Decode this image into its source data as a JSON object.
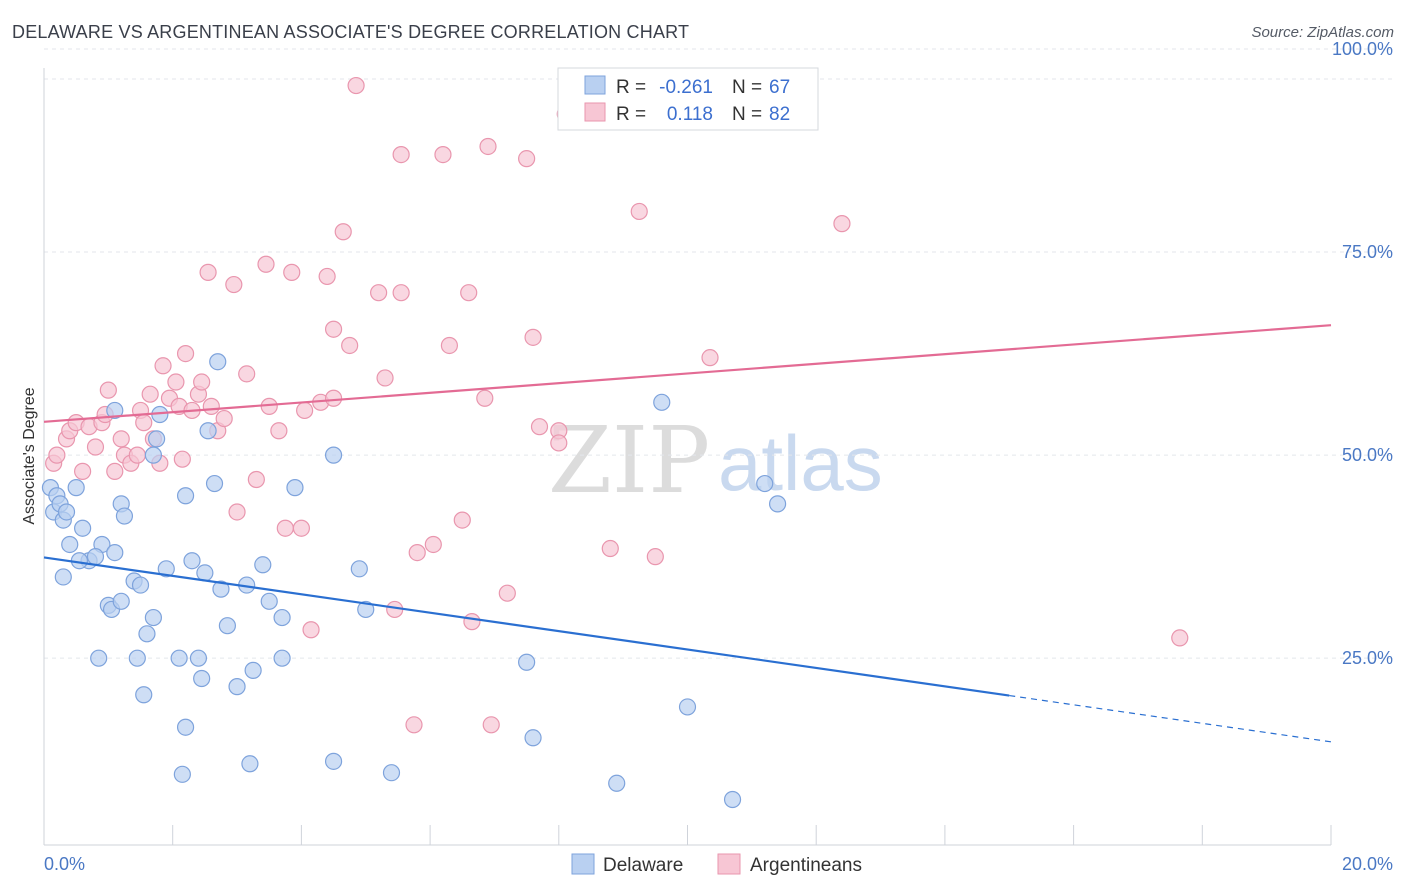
{
  "header": {
    "title": "DELAWARE VS ARGENTINEAN ASSOCIATE'S DEGREE CORRELATION CHART",
    "source": "Source: ZipAtlas.com"
  },
  "watermark": {
    "zip": "ZIP",
    "atlas": "atlas"
  },
  "colors": {
    "blue_fill": "#b9d0f1",
    "blue_stroke": "#7ea3dc",
    "blue_line": "#2a6fd1",
    "pink_fill": "#f7c6d4",
    "pink_stroke": "#e996ae",
    "pink_line": "#e36b94"
  },
  "legend": {
    "rows": [
      {
        "r_label": "R =",
        "r_value": "-0.261",
        "n_label": "N =",
        "n_value": "67"
      },
      {
        "r_label": "R =",
        "r_value": "0.118",
        "n_label": "N =",
        "n_value": "82"
      }
    ]
  },
  "chart_data": {
    "type": "scatter",
    "xlabel": "",
    "ylabel": "Associate's Degree",
    "xlim": [
      0,
      20
    ],
    "ylim": [
      2,
      100
    ],
    "x_tick_labels": [
      "0.0%",
      "20.0%"
    ],
    "y_ticks": [
      25,
      50,
      75,
      100
    ],
    "y_tick_labels": [
      "25.0%",
      "50.0%",
      "75.0%",
      "100.0%"
    ],
    "grid": true,
    "legend_position": "bottom",
    "series": [
      {
        "name": "Delaware",
        "trend": {
          "x": [
            0,
            15
          ],
          "y": [
            37.4,
            20.4
          ],
          "dashed_to": [
            20,
            14.7
          ]
        },
        "points": [
          [
            0.1,
            46
          ],
          [
            0.15,
            43
          ],
          [
            0.3,
            42
          ],
          [
            0.5,
            46
          ],
          [
            0.4,
            39
          ],
          [
            0.6,
            41
          ],
          [
            0.7,
            37
          ],
          [
            0.9,
            39
          ],
          [
            0.3,
            35
          ],
          [
            0.55,
            37
          ],
          [
            0.8,
            37.5
          ],
          [
            1.1,
            38
          ],
          [
            1.1,
            55.5
          ],
          [
            1.2,
            44
          ],
          [
            1.25,
            42.5
          ],
          [
            1.0,
            31.5
          ],
          [
            1.05,
            31
          ],
          [
            1.2,
            32
          ],
          [
            1.4,
            34.5
          ],
          [
            1.5,
            34
          ],
          [
            1.6,
            28
          ],
          [
            1.7,
            30
          ],
          [
            1.45,
            25
          ],
          [
            0.85,
            25
          ],
          [
            1.55,
            20.5
          ],
          [
            1.7,
            50
          ],
          [
            1.75,
            52
          ],
          [
            1.8,
            55
          ],
          [
            1.9,
            36
          ],
          [
            2.1,
            25
          ],
          [
            2.2,
            45
          ],
          [
            2.2,
            16.5
          ],
          [
            2.15,
            10.7
          ],
          [
            2.3,
            37
          ],
          [
            2.4,
            25
          ],
          [
            2.45,
            22.5
          ],
          [
            2.5,
            35.5
          ],
          [
            2.55,
            53
          ],
          [
            2.65,
            46.5
          ],
          [
            2.7,
            61.5
          ],
          [
            2.75,
            33.5
          ],
          [
            2.85,
            29
          ],
          [
            3.0,
            21.5
          ],
          [
            3.15,
            34
          ],
          [
            3.2,
            12
          ],
          [
            3.25,
            23.5
          ],
          [
            3.4,
            36.5
          ],
          [
            3.5,
            32
          ],
          [
            3.7,
            30
          ],
          [
            3.7,
            25
          ],
          [
            3.9,
            46
          ],
          [
            4.5,
            50
          ],
          [
            4.5,
            12.3
          ],
          [
            4.9,
            36
          ],
          [
            5.0,
            31
          ],
          [
            5.4,
            10.9
          ],
          [
            7.5,
            24.5
          ],
          [
            7.6,
            15.2
          ],
          [
            8.9,
            9.6
          ],
          [
            9.6,
            56.5
          ],
          [
            10.0,
            19
          ],
          [
            10.7,
            7.6
          ],
          [
            11.2,
            46.5
          ],
          [
            11.4,
            44
          ],
          [
            0.2,
            45
          ],
          [
            0.25,
            44
          ],
          [
            0.35,
            43
          ]
        ]
      },
      {
        "name": "Argentineans",
        "trend": {
          "x": [
            0,
            20
          ],
          "y": [
            54.1,
            66
          ]
        },
        "points": [
          [
            0.15,
            49
          ],
          [
            0.2,
            50
          ],
          [
            0.35,
            52
          ],
          [
            0.4,
            53
          ],
          [
            0.5,
            54
          ],
          [
            0.6,
            48
          ],
          [
            0.7,
            53.5
          ],
          [
            0.8,
            51
          ],
          [
            0.9,
            54
          ],
          [
            0.95,
            55
          ],
          [
            1.0,
            58
          ],
          [
            1.1,
            48
          ],
          [
            1.2,
            52
          ],
          [
            1.25,
            50
          ],
          [
            1.35,
            49
          ],
          [
            1.45,
            50
          ],
          [
            1.5,
            55.5
          ],
          [
            1.55,
            54
          ],
          [
            1.65,
            57.5
          ],
          [
            1.7,
            52
          ],
          [
            1.8,
            49
          ],
          [
            1.85,
            61
          ],
          [
            1.95,
            57
          ],
          [
            2.05,
            59
          ],
          [
            2.1,
            56
          ],
          [
            2.15,
            49.5
          ],
          [
            2.2,
            62.5
          ],
          [
            2.3,
            55.5
          ],
          [
            2.4,
            57.5
          ],
          [
            2.45,
            59
          ],
          [
            2.55,
            72.5
          ],
          [
            2.6,
            56
          ],
          [
            2.7,
            53
          ],
          [
            2.8,
            54.5
          ],
          [
            2.95,
            71
          ],
          [
            3.0,
            43
          ],
          [
            3.15,
            60
          ],
          [
            3.3,
            47
          ],
          [
            3.45,
            73.5
          ],
          [
            3.5,
            56
          ],
          [
            3.65,
            53
          ],
          [
            3.75,
            41
          ],
          [
            3.85,
            72.5
          ],
          [
            4.0,
            41
          ],
          [
            4.05,
            55.5
          ],
          [
            4.15,
            28.5
          ],
          [
            4.3,
            56.5
          ],
          [
            4.4,
            72
          ],
          [
            4.5,
            57
          ],
          [
            4.5,
            65.5
          ],
          [
            4.65,
            77.5
          ],
          [
            4.75,
            63.5
          ],
          [
            4.85,
            95.5
          ],
          [
            5.2,
            70
          ],
          [
            5.3,
            59.5
          ],
          [
            5.45,
            31
          ],
          [
            5.55,
            70
          ],
          [
            5.55,
            87
          ],
          [
            5.75,
            16.8
          ],
          [
            5.8,
            38
          ],
          [
            6.05,
            39
          ],
          [
            6.2,
            87
          ],
          [
            6.3,
            63.5
          ],
          [
            6.5,
            42
          ],
          [
            6.6,
            70
          ],
          [
            6.65,
            29.5
          ],
          [
            6.85,
            57
          ],
          [
            6.9,
            88
          ],
          [
            6.95,
            16.8
          ],
          [
            7.2,
            33
          ],
          [
            7.5,
            86.5
          ],
          [
            7.6,
            64.5
          ],
          [
            7.7,
            53.5
          ],
          [
            8.0,
            53
          ],
          [
            8.0,
            51.5
          ],
          [
            8.1,
            92
          ],
          [
            8.8,
            38.5
          ],
          [
            9.25,
            80
          ],
          [
            9.5,
            37.5
          ],
          [
            10.35,
            62
          ],
          [
            12.4,
            78.5
          ],
          [
            17.65,
            27.5
          ]
        ]
      }
    ]
  },
  "bottom_legend": [
    "Delaware",
    "Argentineans"
  ]
}
